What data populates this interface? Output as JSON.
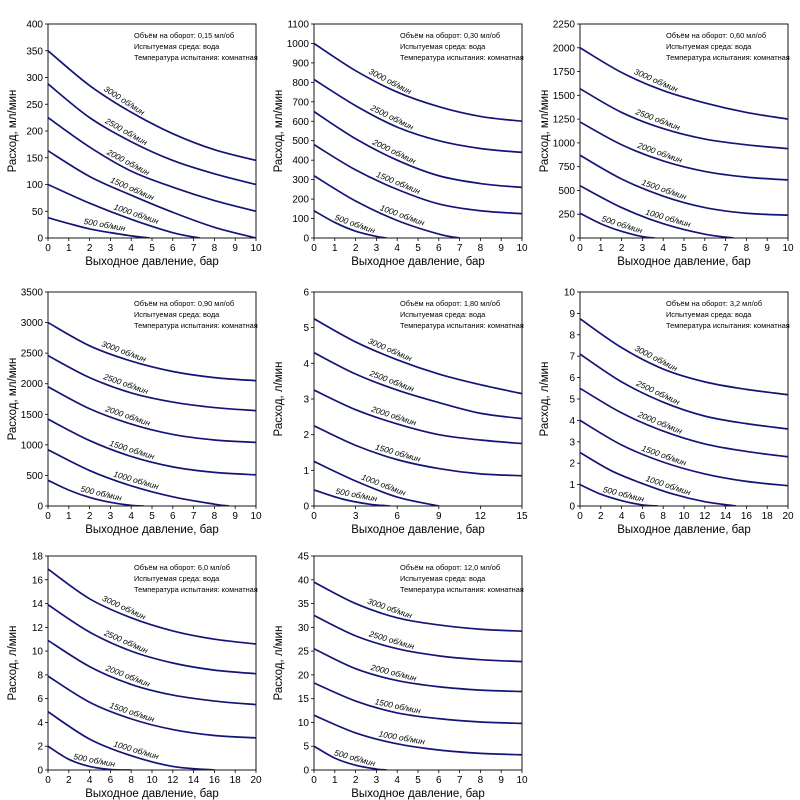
{
  "chart_data": [
    {
      "type": "line",
      "info": [
        "Объём на оборот: 0,15 мл/об",
        "Испытуемая среда: вода",
        "Температура испытания: комнатная"
      ],
      "xlabel": "Выходное давление, бар",
      "ylabel": "Расход, мл/мин",
      "xlim": [
        0,
        10
      ],
      "ylim": [
        0,
        400
      ],
      "x_ticks": [
        "0",
        "1",
        "2",
        "3",
        "4",
        "5",
        "6",
        "7",
        "8",
        "9",
        "10"
      ],
      "y_ticks": [
        "0",
        "50",
        "100",
        "150",
        "200",
        "250",
        "300",
        "350",
        "400"
      ],
      "series": [
        {
          "name": "500 об/мин",
          "x": [
            0,
            1,
            2,
            3,
            4,
            4.9
          ],
          "y": [
            38,
            27,
            17,
            10,
            4,
            0
          ]
        },
        {
          "name": "1000 об/мин",
          "x": [
            0,
            2,
            4,
            6,
            7.3
          ],
          "y": [
            100,
            65,
            35,
            10,
            0
          ]
        },
        {
          "name": "1500 об/мин",
          "x": [
            0,
            2,
            4,
            6,
            8,
            10
          ],
          "y": [
            163,
            115,
            80,
            48,
            20,
            0
          ]
        },
        {
          "name": "2000 об/мин",
          "x": [
            0,
            2,
            4,
            6,
            8,
            10
          ],
          "y": [
            225,
            170,
            125,
            95,
            70,
            50
          ]
        },
        {
          "name": "2500 об/мин",
          "x": [
            0,
            2,
            4,
            6,
            8,
            10
          ],
          "y": [
            288,
            225,
            180,
            145,
            120,
            100
          ]
        },
        {
          "name": "3000 об/мин",
          "x": [
            0,
            2,
            4,
            6,
            8,
            10
          ],
          "y": [
            350,
            285,
            235,
            195,
            165,
            145
          ]
        }
      ]
    },
    {
      "type": "line",
      "info": [
        "Объём на оборот: 0,30 мл/об",
        "Испытуемая среда: вода",
        "Температура испытания: комнатная"
      ],
      "xlabel": "Выходное давление, бар",
      "ylabel": "Расход, мл/мин",
      "xlim": [
        0,
        10
      ],
      "ylim": [
        0,
        1100
      ],
      "x_ticks": [
        "0",
        "1",
        "2",
        "3",
        "4",
        "5",
        "6",
        "7",
        "8",
        "9",
        "10"
      ],
      "y_ticks": [
        "0",
        "100",
        "200",
        "300",
        "400",
        "500",
        "600",
        "700",
        "800",
        "900",
        "1000",
        "1100"
      ],
      "series": [
        {
          "name": "500 об/мин",
          "x": [
            0,
            1,
            2,
            3,
            3.5
          ],
          "y": [
            140,
            80,
            35,
            8,
            0
          ]
        },
        {
          "name": "1000 об/мин",
          "x": [
            0,
            2,
            4,
            6,
            7
          ],
          "y": [
            320,
            190,
            90,
            20,
            0
          ]
        },
        {
          "name": "1500 об/мин",
          "x": [
            0,
            2,
            4,
            6,
            8,
            10
          ],
          "y": [
            480,
            350,
            250,
            175,
            140,
            125
          ]
        },
        {
          "name": "2000 об/мин",
          "x": [
            0,
            2,
            4,
            6,
            8,
            10
          ],
          "y": [
            650,
            510,
            400,
            320,
            280,
            260
          ]
        },
        {
          "name": "2500 об/мин",
          "x": [
            0,
            2,
            4,
            6,
            8,
            10
          ],
          "y": [
            815,
            680,
            570,
            500,
            460,
            440
          ]
        },
        {
          "name": "3000 об/мин",
          "x": [
            0,
            2,
            4,
            6,
            8,
            10
          ],
          "y": [
            1000,
            860,
            750,
            675,
            625,
            600
          ]
        }
      ]
    },
    {
      "type": "line",
      "info": [
        "Объём на оборот: 0,60 мл/об",
        "Испытуемая среда: вода",
        "Температура испытания: комнатная"
      ],
      "xlabel": "Выходное давление, бар",
      "ylabel": "Расход, мл/мин",
      "xlim": [
        0,
        10
      ],
      "ylim": [
        0,
        2250
      ],
      "x_ticks": [
        "0",
        "1",
        "2",
        "3",
        "4",
        "5",
        "6",
        "7",
        "8",
        "9",
        "10"
      ],
      "y_ticks": [
        "0",
        "250",
        "500",
        "750",
        "1000",
        "1250",
        "1500",
        "1750",
        "2000",
        "2250"
      ],
      "series": [
        {
          "name": "500 об/мин",
          "x": [
            0,
            1,
            2,
            3,
            3.6
          ],
          "y": [
            260,
            150,
            70,
            15,
            0
          ]
        },
        {
          "name": "1000 об/мин",
          "x": [
            0,
            2,
            4,
            6,
            7.4
          ],
          "y": [
            550,
            320,
            150,
            40,
            0
          ]
        },
        {
          "name": "1500 об/мин",
          "x": [
            0,
            2,
            4,
            6,
            8,
            10
          ],
          "y": [
            870,
            620,
            440,
            320,
            260,
            240
          ]
        },
        {
          "name": "2000 об/мин",
          "x": [
            0,
            2,
            4,
            6,
            8,
            10
          ],
          "y": [
            1220,
            980,
            810,
            700,
            640,
            610
          ]
        },
        {
          "name": "2500 об/мин",
          "x": [
            0,
            2,
            4,
            6,
            8,
            10
          ],
          "y": [
            1570,
            1320,
            1150,
            1040,
            980,
            940
          ]
        },
        {
          "name": "3000 об/мин",
          "x": [
            0,
            2,
            4,
            6,
            8,
            10
          ],
          "y": [
            2000,
            1740,
            1550,
            1420,
            1320,
            1250
          ]
        }
      ]
    },
    {
      "type": "line",
      "info": [
        "Объём на оборот: 0,90 мл/об",
        "Испытуемая среда: вода",
        "Температура испытания: комнатная"
      ],
      "xlabel": "Выходное давление, бар",
      "ylabel": "Расход, мл/мин",
      "xlim": [
        0,
        10
      ],
      "ylim": [
        0,
        3500
      ],
      "x_ticks": [
        "0",
        "1",
        "2",
        "3",
        "4",
        "5",
        "6",
        "7",
        "8",
        "9",
        "10"
      ],
      "y_ticks": [
        "0",
        "500",
        "1000",
        "1500",
        "2000",
        "2500",
        "3000",
        "3500"
      ],
      "series": [
        {
          "name": "500 об/мин",
          "x": [
            0,
            1,
            2,
            3,
            4,
            4.6
          ],
          "y": [
            420,
            260,
            140,
            60,
            10,
            0
          ]
        },
        {
          "name": "1000 об/мин",
          "x": [
            0,
            2,
            4,
            6,
            8,
            8.7
          ],
          "y": [
            920,
            580,
            330,
            150,
            30,
            0
          ]
        },
        {
          "name": "1500 об/мин",
          "x": [
            0,
            2,
            4,
            6,
            8,
            10
          ],
          "y": [
            1420,
            1070,
            810,
            640,
            550,
            510
          ]
        },
        {
          "name": "2000 об/мин",
          "x": [
            0,
            2,
            4,
            6,
            8,
            10
          ],
          "y": [
            1950,
            1590,
            1340,
            1170,
            1080,
            1040
          ]
        },
        {
          "name": "2500 об/мин",
          "x": [
            0,
            2,
            4,
            6,
            8,
            10
          ],
          "y": [
            2460,
            2100,
            1850,
            1700,
            1610,
            1560
          ]
        },
        {
          "name": "3000 об/мин",
          "x": [
            0,
            2,
            4,
            6,
            8,
            10
          ],
          "y": [
            3000,
            2620,
            2370,
            2200,
            2100,
            2050
          ]
        }
      ]
    },
    {
      "type": "line",
      "info": [
        "Объём на оборот: 1,80 мл/об",
        "Испытуемая среда: вода",
        "Температура испытания: комнатная"
      ],
      "xlabel": "Выходное давление, бар",
      "ylabel": "Расход, л/мин",
      "xlim": [
        0,
        15
      ],
      "ylim": [
        0,
        6
      ],
      "x_ticks": [
        "0",
        "3",
        "6",
        "9",
        "12",
        "15"
      ],
      "y_ticks": [
        "0",
        "1",
        "2",
        "3",
        "4",
        "5",
        "6"
      ],
      "series": [
        {
          "name": "500 об/мин",
          "x": [
            0,
            2,
            4,
            5.5
          ],
          "y": [
            0.45,
            0.2,
            0.05,
            0
          ]
        },
        {
          "name": "1000 об/мин",
          "x": [
            0,
            3,
            6,
            9
          ],
          "y": [
            1.25,
            0.7,
            0.25,
            0
          ]
        },
        {
          "name": "1500 об/мин",
          "x": [
            0,
            3,
            6,
            9,
            12,
            15
          ],
          "y": [
            2.25,
            1.7,
            1.3,
            1.05,
            0.9,
            0.85
          ]
        },
        {
          "name": "2000 об/мин",
          "x": [
            0,
            3,
            6,
            9,
            12,
            15
          ],
          "y": [
            3.25,
            2.7,
            2.3,
            2.0,
            1.85,
            1.75
          ]
        },
        {
          "name": "2500 об/мин",
          "x": [
            0,
            3,
            6,
            9,
            12,
            15
          ],
          "y": [
            4.3,
            3.7,
            3.25,
            2.9,
            2.6,
            2.45
          ]
        },
        {
          "name": "3000 об/мин",
          "x": [
            0,
            3,
            6,
            9,
            12,
            15
          ],
          "y": [
            5.25,
            4.6,
            4.1,
            3.7,
            3.4,
            3.15
          ]
        }
      ]
    },
    {
      "type": "line",
      "info": [
        "Объём на оборот: 3,2 мл/об",
        "Испытуемая среда: вода",
        "Температура испытания: комнатная"
      ],
      "xlabel": "Выходное давление, бар",
      "ylabel": "Расход, л/мин",
      "xlim": [
        0,
        20
      ],
      "ylim": [
        0,
        10
      ],
      "x_ticks": [
        "0",
        "2",
        "4",
        "6",
        "8",
        "10",
        "12",
        "14",
        "16",
        "18",
        "20"
      ],
      "y_ticks": [
        "0",
        "1",
        "2",
        "3",
        "4",
        "5",
        "6",
        "7",
        "8",
        "9",
        "10"
      ],
      "series": [
        {
          "name": "500 об/мин",
          "x": [
            0,
            2,
            4,
            6,
            7.5
          ],
          "y": [
            1.0,
            0.55,
            0.25,
            0.05,
            0
          ]
        },
        {
          "name": "1000 об/мин",
          "x": [
            0,
            3,
            6,
            9,
            12,
            15
          ],
          "y": [
            2.5,
            1.65,
            1.05,
            0.55,
            0.2,
            0
          ]
        },
        {
          "name": "1500 об/мин",
          "x": [
            0,
            4,
            8,
            12,
            16,
            20
          ],
          "y": [
            4.0,
            2.85,
            2.05,
            1.5,
            1.15,
            0.95
          ]
        },
        {
          "name": "2000 об/мин",
          "x": [
            0,
            4,
            8,
            12,
            16,
            20
          ],
          "y": [
            5.5,
            4.35,
            3.5,
            2.9,
            2.55,
            2.3
          ]
        },
        {
          "name": "2500 об/мин",
          "x": [
            0,
            4,
            8,
            12,
            16,
            20
          ],
          "y": [
            7.1,
            5.8,
            4.85,
            4.2,
            3.85,
            3.6
          ]
        },
        {
          "name": "3000 об/мин",
          "x": [
            0,
            4,
            8,
            12,
            16,
            20
          ],
          "y": [
            8.75,
            7.4,
            6.4,
            5.8,
            5.45,
            5.2
          ]
        }
      ]
    },
    {
      "type": "line",
      "info": [
        "Объём на оборот: 6,0 мл/об",
        "Испытуемая среда: вода",
        "Температура испытания: комнатная"
      ],
      "xlabel": "Выходное давление, бар",
      "ylabel": "Расход, л/мин",
      "xlim": [
        0,
        20
      ],
      "ylim": [
        0,
        18
      ],
      "x_ticks": [
        "0",
        "2",
        "4",
        "6",
        "8",
        "10",
        "12",
        "14",
        "16",
        "18",
        "20"
      ],
      "y_ticks": [
        "0",
        "2",
        "4",
        "6",
        "8",
        "10",
        "12",
        "14",
        "16",
        "18"
      ],
      "series": [
        {
          "name": "500 об/мин",
          "x": [
            0,
            2,
            4,
            6,
            8
          ],
          "y": [
            2.0,
            0.9,
            0.3,
            0.05,
            0
          ]
        },
        {
          "name": "1000 об/мин",
          "x": [
            0,
            4,
            8,
            12,
            16
          ],
          "y": [
            4.9,
            2.6,
            1.2,
            0.3,
            0
          ]
        },
        {
          "name": "1500 об/мин",
          "x": [
            0,
            4,
            8,
            12,
            16,
            20
          ],
          "y": [
            7.9,
            5.7,
            4.3,
            3.4,
            2.9,
            2.7
          ]
        },
        {
          "name": "2000 об/мин",
          "x": [
            0,
            4,
            8,
            12,
            16,
            20
          ],
          "y": [
            10.9,
            8.7,
            7.2,
            6.3,
            5.8,
            5.5
          ]
        },
        {
          "name": "2500 об/мин",
          "x": [
            0,
            4,
            8,
            12,
            16,
            20
          ],
          "y": [
            13.9,
            11.6,
            10.0,
            9.0,
            8.4,
            8.1
          ]
        },
        {
          "name": "3000 об/мин",
          "x": [
            0,
            4,
            8,
            12,
            16,
            20
          ],
          "y": [
            16.9,
            14.4,
            12.8,
            11.7,
            11.0,
            10.6
          ]
        }
      ]
    },
    {
      "type": "line",
      "info": [
        "Объём на оборот: 12,0 мл/об",
        "Испытуемая среда: вода",
        "Температура испытания: комнатная"
      ],
      "xlabel": "Выходное давление, бар",
      "ylabel": "Расход, л/мин",
      "xlim": [
        0,
        10
      ],
      "ylim": [
        0,
        45
      ],
      "x_ticks": [
        "0",
        "1",
        "2",
        "3",
        "4",
        "5",
        "6",
        "7",
        "8",
        "9",
        "10"
      ],
      "y_ticks": [
        "0",
        "5",
        "10",
        "15",
        "20",
        "25",
        "30",
        "35",
        "40",
        "45"
      ],
      "series": [
        {
          "name": "500 об/мин",
          "x": [
            0,
            1,
            2,
            3,
            3.5
          ],
          "y": [
            5.0,
            2.5,
            1.0,
            0.2,
            0
          ]
        },
        {
          "name": "1000 об/мин",
          "x": [
            0,
            2,
            4,
            6,
            8,
            10
          ],
          "y": [
            11.5,
            7.8,
            5.5,
            4.2,
            3.5,
            3.2
          ]
        },
        {
          "name": "1500 об/мин",
          "x": [
            0,
            2,
            4,
            6,
            8,
            10
          ],
          "y": [
            18.3,
            14.5,
            12.0,
            10.8,
            10.1,
            9.8
          ]
        },
        {
          "name": "2000 об/мин",
          "x": [
            0,
            2,
            4,
            6,
            8,
            10
          ],
          "y": [
            25.5,
            21.3,
            18.8,
            17.5,
            16.8,
            16.5
          ]
        },
        {
          "name": "2500 об/мин",
          "x": [
            0,
            2,
            4,
            6,
            8,
            10
          ],
          "y": [
            32.5,
            28.2,
            25.5,
            24.0,
            23.2,
            22.8
          ]
        },
        {
          "name": "3000 об/мин",
          "x": [
            0,
            2,
            4,
            6,
            8,
            10
          ],
          "y": [
            39.5,
            35.0,
            32.0,
            30.5,
            29.6,
            29.2
          ]
        }
      ]
    }
  ]
}
